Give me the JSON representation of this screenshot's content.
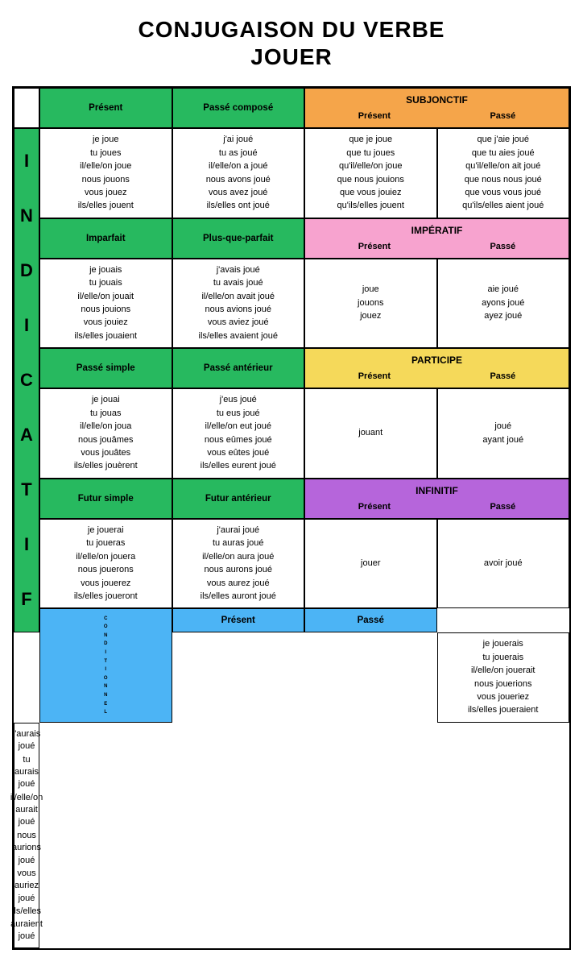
{
  "title_line1": "CONJUGAISON DU VERBE",
  "title_line2": "JOUER",
  "colors": {
    "green": "#27b95f",
    "orange": "#f5a54a",
    "pink": "#f7a3cf",
    "yellow": "#f5d95a",
    "purple": "#b665db",
    "blue": "#4cb4f5",
    "white": "#ffffff",
    "border": "#000000"
  },
  "sidebars": {
    "indicatif": "INDICATIF",
    "conditionnel": "CONDITIONNEL"
  },
  "moods": {
    "subjonctif": {
      "title": "SUBJONCTIF",
      "sub1": "Présent",
      "sub2": "Passé"
    },
    "imperatif": {
      "title": "IMPÉRATIF",
      "sub1": "Présent",
      "sub2": "Passé"
    },
    "participe": {
      "title": "PARTICIPE",
      "sub1": "Présent",
      "sub2": "Passé"
    },
    "infinitif": {
      "title": "INFINITIF",
      "sub1": "Présent",
      "sub2": "Passé"
    }
  },
  "tenses": {
    "present": "Présent",
    "passe_compose": "Passé composé",
    "imparfait": "Imparfait",
    "plus_que_parfait": "Plus-que-parfait",
    "passe_simple": "Passé simple",
    "passe_anterieur": "Passé antérieur",
    "futur_simple": "Futur simple",
    "futur_anterieur": "Futur antérieur",
    "cond_present": "Présent",
    "cond_passe": "Passé"
  },
  "conj": {
    "ind_present": [
      "je joue",
      "tu joues",
      "il/elle/on joue",
      "nous jouons",
      "vous jouez",
      "ils/elles jouent"
    ],
    "ind_passe_compose": [
      "j'ai joué",
      "tu as joué",
      "il/elle/on a joué",
      "nous avons joué",
      "vous avez joué",
      "ils/elles ont joué"
    ],
    "subj_present": [
      "que je joue",
      "que tu joues",
      "qu'il/elle/on joue",
      "que nous jouions",
      "que vous jouiez",
      "qu'ils/elles jouent"
    ],
    "subj_passe": [
      "que j'aie joué",
      "que tu aies joué",
      "qu'il/elle/on ait joué",
      "que nous nous joué",
      "que vous vous joué",
      "qu'ils/elles aient joué"
    ],
    "ind_imparfait": [
      "je jouais",
      "tu jouais",
      "il/elle/on jouait",
      "nous jouions",
      "vous jouiez",
      "ils/elles jouaient"
    ],
    "ind_pqp": [
      "j'avais joué",
      "tu avais joué",
      "il/elle/on avait joué",
      "nous avions joué",
      "vous aviez joué",
      "ils/elles avaient joué"
    ],
    "imp_present": [
      "joue",
      "jouons",
      "jouez"
    ],
    "imp_passe": [
      "aie joué",
      "ayons joué",
      "ayez joué"
    ],
    "ind_passe_simple": [
      "je jouai",
      "tu jouas",
      "il/elle/on joua",
      "nous jouâmes",
      "vous jouâtes",
      "ils/elles jouèrent"
    ],
    "ind_passe_anterieur": [
      "j'eus joué",
      "tu eus joué",
      "il/elle/on eut joué",
      "nous eûmes joué",
      "vous eûtes joué",
      "ils/elles eurent joué"
    ],
    "part_present": [
      "jouant"
    ],
    "part_passe": [
      "joué",
      "ayant joué"
    ],
    "ind_futur_simple": [
      "je jouerai",
      "tu joueras",
      "il/elle/on jouera",
      "nous jouerons",
      "vous jouerez",
      "ils/elles joueront"
    ],
    "ind_futur_anterieur": [
      "j'aurai joué",
      "tu auras joué",
      "il/elle/on aura joué",
      "nous aurons joué",
      "vous aurez joué",
      "ils/elles auront joué"
    ],
    "inf_present": [
      "jouer"
    ],
    "inf_passe": [
      "avoir joué"
    ],
    "cond_present": [
      "je jouerais",
      "tu jouerais",
      "il/elle/on jouerait",
      "nous jouerions",
      "vous joueriez",
      "ils/elles joueraient"
    ],
    "cond_passe": [
      "j'aurais joué",
      "tu aurais joué",
      "il/elle/on aurait joué",
      "nous aurions joué",
      "vous auriez joué",
      "ils/elles auraient joué"
    ]
  }
}
